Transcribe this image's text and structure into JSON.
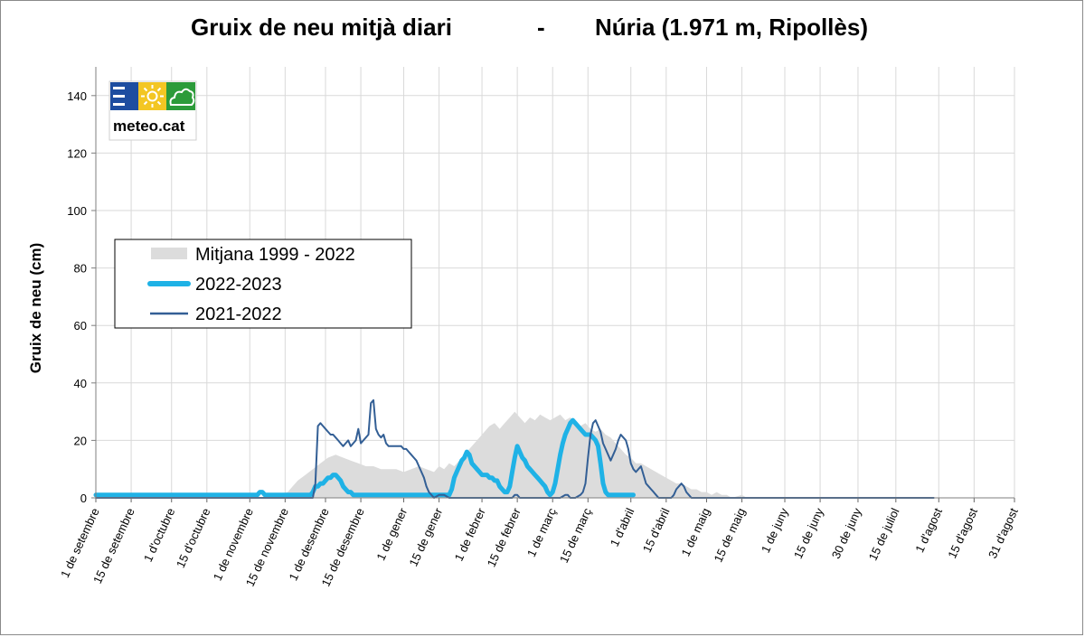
{
  "chart_data": {
    "type": "area",
    "title_left": "Gruix de neu mitjà diari",
    "title_sep": "-",
    "title_right": "Núria (1.971 m, Ripollès)",
    "ylabel": "Gruix de neu (cm)",
    "xlabel": "",
    "ylim": [
      0,
      150
    ],
    "yticks": [
      0,
      20,
      40,
      60,
      80,
      100,
      120,
      140
    ],
    "xlim_days": [
      0,
      364
    ],
    "grid": true,
    "legend_position": "left-middle",
    "xticks": [
      {
        "day": 0,
        "label": "1 de setembre"
      },
      {
        "day": 14,
        "label": "15 de setembre"
      },
      {
        "day": 30,
        "label": "1 d'octubre"
      },
      {
        "day": 44,
        "label": "15 d'octubre"
      },
      {
        "day": 61,
        "label": "1 de novembre"
      },
      {
        "day": 75,
        "label": "15 de novembre"
      },
      {
        "day": 91,
        "label": "1 de desembre"
      },
      {
        "day": 105,
        "label": "15 de desembre"
      },
      {
        "day": 122,
        "label": "1 de gener"
      },
      {
        "day": 136,
        "label": "15 de gener"
      },
      {
        "day": 153,
        "label": "1 de febrer"
      },
      {
        "day": 167,
        "label": "15 de febrer"
      },
      {
        "day": 181,
        "label": "1 de març"
      },
      {
        "day": 195,
        "label": "15 de març"
      },
      {
        "day": 212,
        "label": "1 d'abril"
      },
      {
        "day": 226,
        "label": "15 d'abril"
      },
      {
        "day": 242,
        "label": "1 de maig"
      },
      {
        "day": 256,
        "label": "15 de maig"
      },
      {
        "day": 273,
        "label": "1 de juny"
      },
      {
        "day": 287,
        "label": "15 de juny"
      },
      {
        "day": 302,
        "label": "30 de juny"
      },
      {
        "day": 317,
        "label": "15 de juliol"
      },
      {
        "day": 334,
        "label": "1 d'agost"
      },
      {
        "day": 348,
        "label": "15 d'agost"
      },
      {
        "day": 364,
        "label": "31 d'agost"
      }
    ],
    "series": [
      {
        "name": "Mitjana 1999 - 2022",
        "kind": "area",
        "color": "#dcdcdc",
        "points": [
          [
            0,
            0
          ],
          [
            68,
            0
          ],
          [
            72,
            1
          ],
          [
            76,
            2
          ],
          [
            78,
            4
          ],
          [
            80,
            6
          ],
          [
            83,
            8
          ],
          [
            86,
            10
          ],
          [
            89,
            12
          ],
          [
            92,
            14
          ],
          [
            95,
            15
          ],
          [
            98,
            14
          ],
          [
            101,
            13
          ],
          [
            104,
            12
          ],
          [
            107,
            11
          ],
          [
            110,
            11
          ],
          [
            113,
            10
          ],
          [
            116,
            10
          ],
          [
            119,
            10
          ],
          [
            122,
            9
          ],
          [
            125,
            10
          ],
          [
            128,
            11
          ],
          [
            131,
            10
          ],
          [
            134,
            9
          ],
          [
            136,
            11
          ],
          [
            138,
            10
          ],
          [
            140,
            12
          ],
          [
            142,
            11
          ],
          [
            144,
            13
          ],
          [
            146,
            15
          ],
          [
            148,
            17
          ],
          [
            150,
            19
          ],
          [
            152,
            21
          ],
          [
            154,
            23
          ],
          [
            156,
            25
          ],
          [
            158,
            26
          ],
          [
            160,
            24
          ],
          [
            162,
            26
          ],
          [
            164,
            28
          ],
          [
            166,
            30
          ],
          [
            168,
            28
          ],
          [
            170,
            26
          ],
          [
            172,
            28
          ],
          [
            174,
            27
          ],
          [
            176,
            29
          ],
          [
            178,
            28
          ],
          [
            180,
            27
          ],
          [
            182,
            28
          ],
          [
            184,
            29
          ],
          [
            186,
            27
          ],
          [
            188,
            28
          ],
          [
            190,
            26
          ],
          [
            192,
            25
          ],
          [
            194,
            26
          ],
          [
            196,
            24
          ],
          [
            198,
            23
          ],
          [
            200,
            24
          ],
          [
            202,
            22
          ],
          [
            204,
            21
          ],
          [
            206,
            19
          ],
          [
            208,
            17
          ],
          [
            210,
            15
          ],
          [
            212,
            14
          ],
          [
            214,
            12
          ],
          [
            216,
            12
          ],
          [
            218,
            11
          ],
          [
            220,
            10
          ],
          [
            222,
            9
          ],
          [
            224,
            8
          ],
          [
            226,
            7
          ],
          [
            228,
            6
          ],
          [
            230,
            5
          ],
          [
            232,
            5
          ],
          [
            234,
            4
          ],
          [
            236,
            3
          ],
          [
            238,
            3
          ],
          [
            240,
            2
          ],
          [
            242,
            2
          ],
          [
            244,
            1
          ],
          [
            246,
            2
          ],
          [
            248,
            1
          ],
          [
            250,
            1
          ],
          [
            252,
            0
          ],
          [
            256,
            1
          ],
          [
            258,
            0
          ],
          [
            262,
            0
          ],
          [
            364,
            0
          ]
        ]
      },
      {
        "name": "2022-2023",
        "kind": "line",
        "color": "#1fb2e6",
        "width": 5,
        "points": [
          [
            0,
            1
          ],
          [
            62,
            1
          ],
          [
            64,
            1
          ],
          [
            65,
            2
          ],
          [
            66,
            2
          ],
          [
            67,
            1
          ],
          [
            85,
            1
          ],
          [
            86,
            2
          ],
          [
            87,
            4
          ],
          [
            88,
            4
          ],
          [
            89,
            5
          ],
          [
            90,
            5
          ],
          [
            91,
            6
          ],
          [
            92,
            7
          ],
          [
            93,
            7
          ],
          [
            94,
            8
          ],
          [
            95,
            8
          ],
          [
            96,
            7
          ],
          [
            97,
            6
          ],
          [
            98,
            4
          ],
          [
            99,
            3
          ],
          [
            100,
            2
          ],
          [
            101,
            2
          ],
          [
            102,
            1
          ],
          [
            103,
            1
          ],
          [
            104,
            1
          ],
          [
            110,
            1
          ],
          [
            140,
            1
          ],
          [
            141,
            3
          ],
          [
            142,
            7
          ],
          [
            143,
            9
          ],
          [
            144,
            11
          ],
          [
            145,
            13
          ],
          [
            146,
            14
          ],
          [
            147,
            16
          ],
          [
            148,
            15
          ],
          [
            149,
            12
          ],
          [
            150,
            11
          ],
          [
            151,
            10
          ],
          [
            152,
            9
          ],
          [
            153,
            8
          ],
          [
            154,
            8
          ],
          [
            155,
            8
          ],
          [
            156,
            7
          ],
          [
            157,
            7
          ],
          [
            158,
            6
          ],
          [
            159,
            6
          ],
          [
            160,
            4
          ],
          [
            161,
            3
          ],
          [
            162,
            2
          ],
          [
            163,
            2
          ],
          [
            164,
            4
          ],
          [
            165,
            9
          ],
          [
            166,
            14
          ],
          [
            167,
            18
          ],
          [
            168,
            16
          ],
          [
            169,
            14
          ],
          [
            170,
            13
          ],
          [
            171,
            11
          ],
          [
            172,
            10
          ],
          [
            173,
            9
          ],
          [
            174,
            8
          ],
          [
            175,
            7
          ],
          [
            176,
            6
          ],
          [
            177,
            5
          ],
          [
            178,
            4
          ],
          [
            179,
            2
          ],
          [
            180,
            1
          ],
          [
            181,
            2
          ],
          [
            182,
            5
          ],
          [
            183,
            10
          ],
          [
            184,
            15
          ],
          [
            185,
            19
          ],
          [
            186,
            22
          ],
          [
            187,
            24
          ],
          [
            188,
            26
          ],
          [
            189,
            27
          ],
          [
            190,
            26
          ],
          [
            191,
            25
          ],
          [
            192,
            24
          ],
          [
            193,
            23
          ],
          [
            194,
            22
          ],
          [
            195,
            22
          ],
          [
            196,
            22
          ],
          [
            197,
            21
          ],
          [
            198,
            20
          ],
          [
            199,
            18
          ],
          [
            200,
            12
          ],
          [
            201,
            5
          ],
          [
            202,
            2
          ],
          [
            203,
            1
          ],
          [
            204,
            1
          ],
          [
            205,
            1
          ],
          [
            206,
            1
          ],
          [
            208,
            1
          ],
          [
            210,
            1
          ],
          [
            212,
            1
          ],
          [
            213,
            1
          ]
        ]
      },
      {
        "name": "2021-2022",
        "kind": "line",
        "color": "#335f95",
        "width": 2,
        "points": [
          [
            0,
            0
          ],
          [
            85,
            0
          ],
          [
            86,
            0
          ],
          [
            87,
            5
          ],
          [
            88,
            25
          ],
          [
            89,
            26
          ],
          [
            90,
            25
          ],
          [
            91,
            24
          ],
          [
            92,
            23
          ],
          [
            93,
            22
          ],
          [
            94,
            22
          ],
          [
            95,
            21
          ],
          [
            96,
            20
          ],
          [
            97,
            19
          ],
          [
            98,
            18
          ],
          [
            99,
            19
          ],
          [
            100,
            20
          ],
          [
            101,
            18
          ],
          [
            102,
            19
          ],
          [
            103,
            20
          ],
          [
            104,
            24
          ],
          [
            105,
            19
          ],
          [
            106,
            20
          ],
          [
            107,
            21
          ],
          [
            108,
            22
          ],
          [
            109,
            33
          ],
          [
            110,
            34
          ],
          [
            111,
            24
          ],
          [
            112,
            22
          ],
          [
            113,
            21
          ],
          [
            114,
            22
          ],
          [
            115,
            19
          ],
          [
            116,
            18
          ],
          [
            117,
            18
          ],
          [
            118,
            18
          ],
          [
            119,
            18
          ],
          [
            120,
            18
          ],
          [
            121,
            18
          ],
          [
            122,
            17
          ],
          [
            123,
            17
          ],
          [
            124,
            16
          ],
          [
            125,
            15
          ],
          [
            126,
            14
          ],
          [
            127,
            13
          ],
          [
            128,
            11
          ],
          [
            129,
            9
          ],
          [
            130,
            7
          ],
          [
            131,
            4
          ],
          [
            132,
            2
          ],
          [
            133,
            1
          ],
          [
            134,
            0
          ],
          [
            136,
            1
          ],
          [
            137,
            1
          ],
          [
            138,
            1
          ],
          [
            140,
            0
          ],
          [
            150,
            0
          ],
          [
            153,
            0
          ],
          [
            157,
            0
          ],
          [
            160,
            0
          ],
          [
            163,
            0
          ],
          [
            165,
            0
          ],
          [
            166,
            1
          ],
          [
            167,
            1
          ],
          [
            168,
            0
          ],
          [
            180,
            0
          ],
          [
            184,
            0
          ],
          [
            186,
            1
          ],
          [
            187,
            1
          ],
          [
            188,
            0
          ],
          [
            190,
            0
          ],
          [
            192,
            1
          ],
          [
            193,
            2
          ],
          [
            194,
            5
          ],
          [
            195,
            14
          ],
          [
            196,
            22
          ],
          [
            197,
            26
          ],
          [
            198,
            27
          ],
          [
            199,
            25
          ],
          [
            200,
            23
          ],
          [
            201,
            19
          ],
          [
            202,
            17
          ],
          [
            203,
            15
          ],
          [
            204,
            13
          ],
          [
            205,
            15
          ],
          [
            206,
            17
          ],
          [
            207,
            20
          ],
          [
            208,
            22
          ],
          [
            209,
            21
          ],
          [
            210,
            20
          ],
          [
            211,
            17
          ],
          [
            212,
            12
          ],
          [
            213,
            10
          ],
          [
            214,
            9
          ],
          [
            215,
            10
          ],
          [
            216,
            11
          ],
          [
            217,
            8
          ],
          [
            218,
            5
          ],
          [
            219,
            4
          ],
          [
            220,
            3
          ],
          [
            221,
            2
          ],
          [
            222,
            1
          ],
          [
            223,
            0
          ],
          [
            228,
            0
          ],
          [
            229,
            1
          ],
          [
            230,
            3
          ],
          [
            231,
            4
          ],
          [
            232,
            5
          ],
          [
            233,
            4
          ],
          [
            234,
            2
          ],
          [
            235,
            1
          ],
          [
            236,
            0
          ],
          [
            330,
            0
          ],
          [
            332,
            0
          ]
        ]
      }
    ]
  },
  "legend": {
    "items": [
      {
        "label": "Mitjana 1999 - 2022",
        "color": "#dcdcdc",
        "style": "area"
      },
      {
        "label": "2022-2023",
        "color": "#1fb2e6",
        "style": "thick-line"
      },
      {
        "label": "2021-2022",
        "color": "#335f95",
        "style": "thin-line"
      }
    ]
  },
  "logo": {
    "text": "meteo.cat",
    "colors": {
      "blue": "#1d4da0",
      "yellow": "#f3c623",
      "green": "#2c9b3a"
    }
  }
}
